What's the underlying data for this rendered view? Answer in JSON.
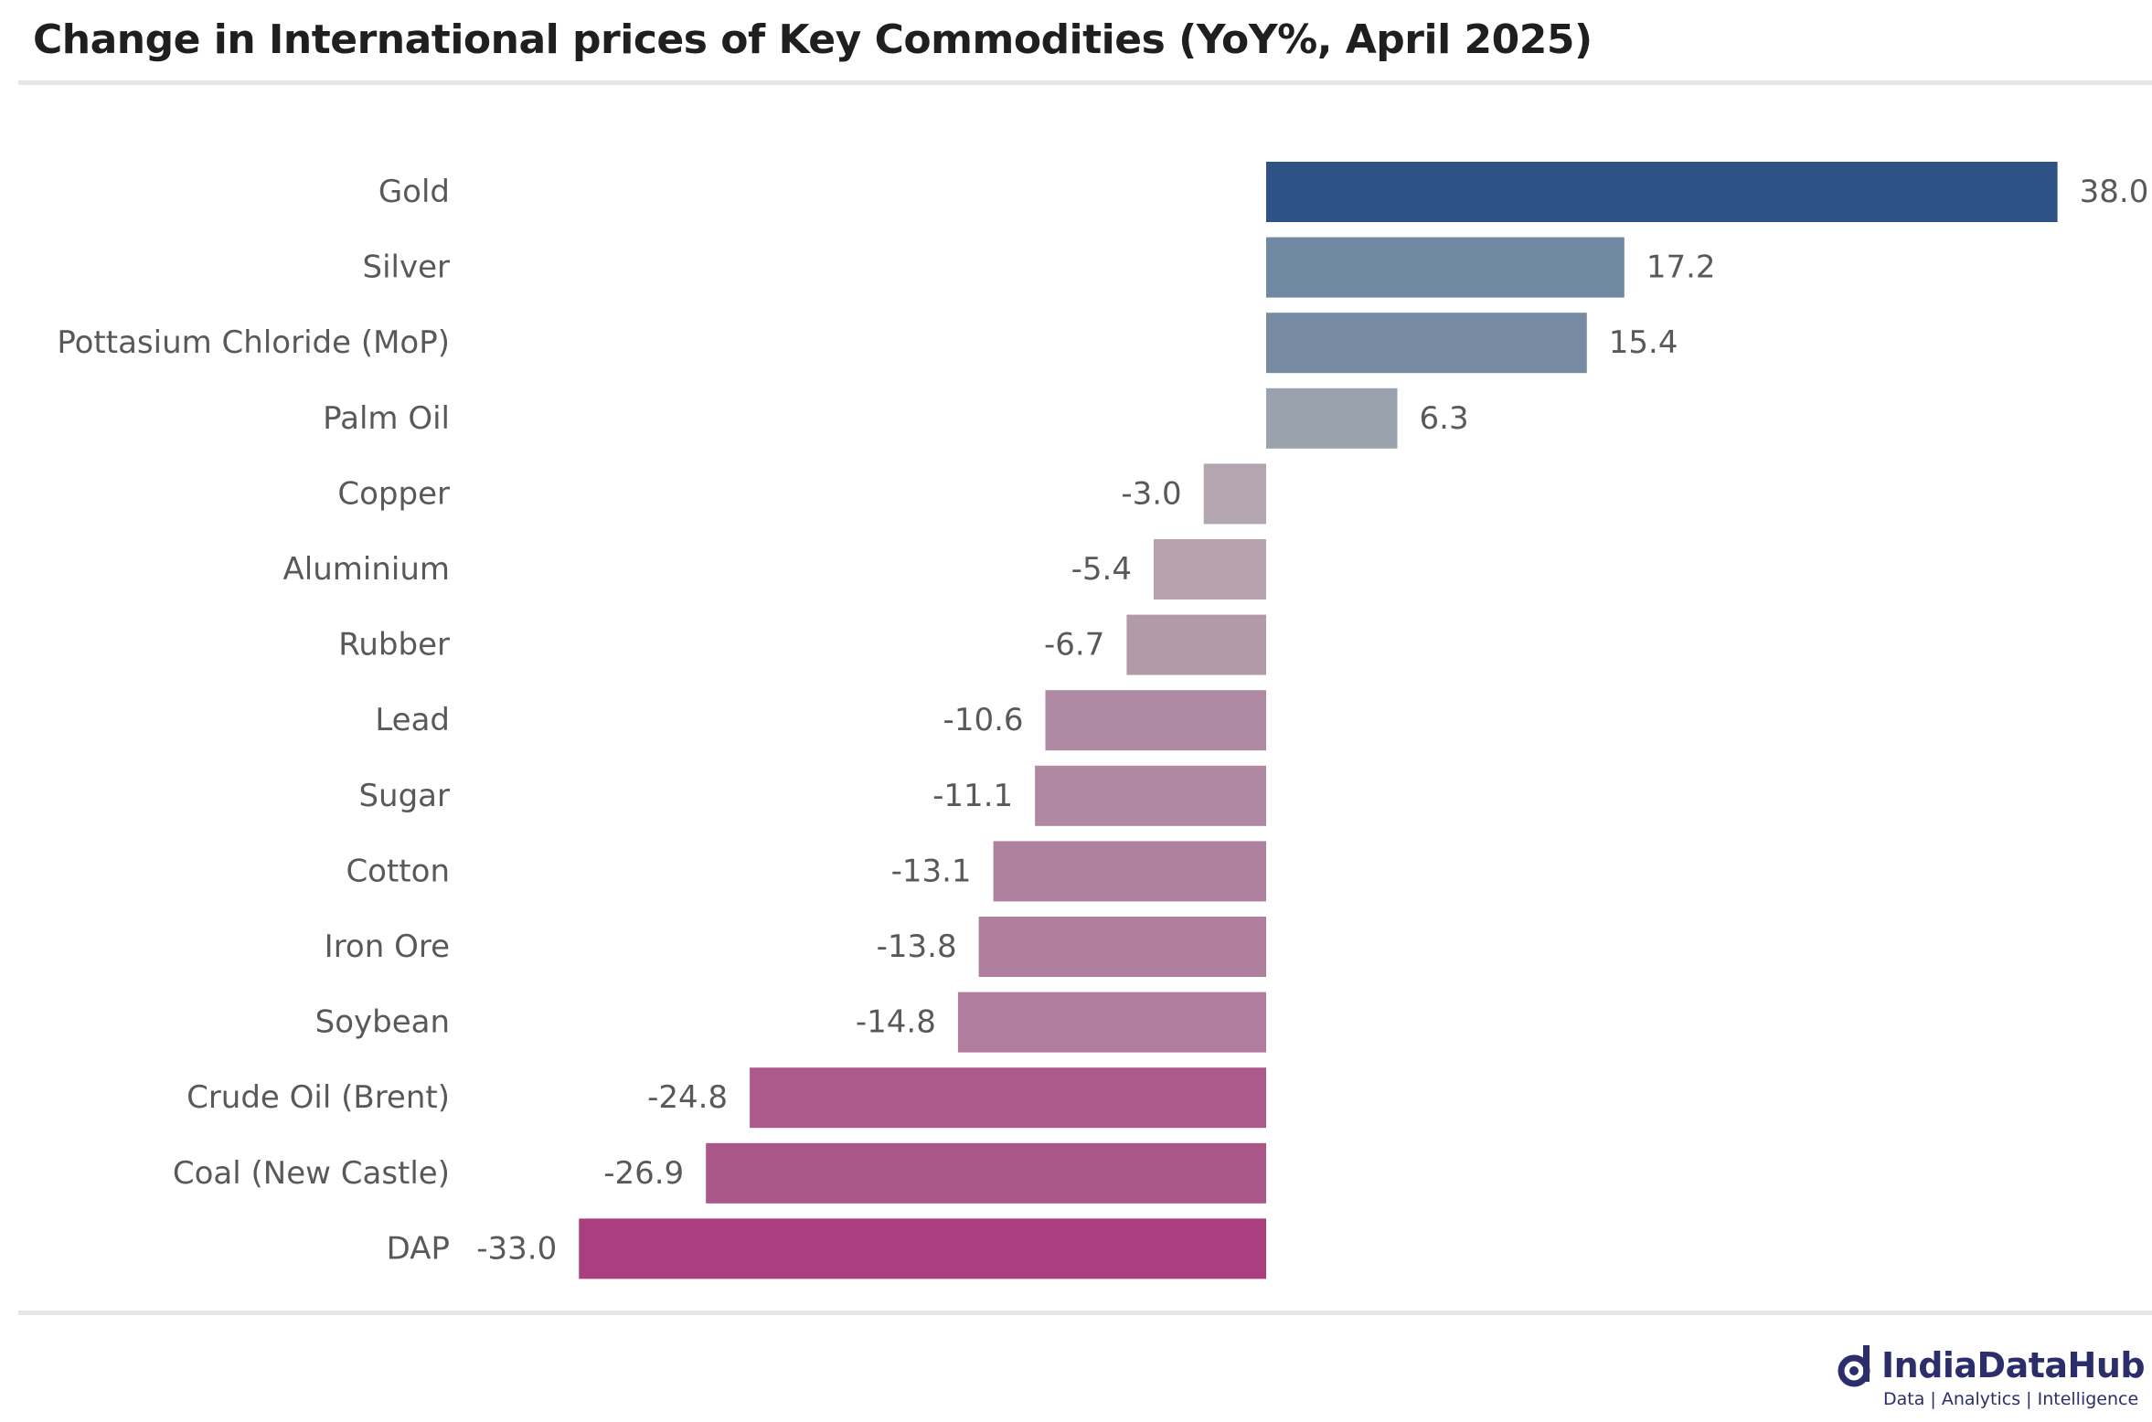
{
  "chart_data": {
    "type": "bar",
    "orientation": "horizontal",
    "title": "Change in International prices of Key Commodities (YoY%, April 2025)",
    "categories": [
      "Gold",
      "Silver",
      "Pottasium Chloride (MoP)",
      "Palm Oil",
      "Copper",
      "Aluminium",
      "Rubber",
      "Lead",
      "Sugar",
      "Cotton",
      "Iron Ore",
      "Soybean",
      "Crude Oil (Brent)",
      "Coal (New Castle)",
      "DAP"
    ],
    "values": [
      38.0,
      17.2,
      15.4,
      6.3,
      -3.0,
      -5.4,
      -6.7,
      -10.6,
      -11.1,
      -13.1,
      -13.8,
      -14.8,
      -24.8,
      -26.9,
      -33.0
    ],
    "value_labels": [
      "38.0",
      "17.2",
      "15.4",
      "6.3",
      "-3.0",
      "-5.4",
      "-6.7",
      "-10.6",
      "-11.1",
      "-13.1",
      "-13.8",
      "-14.8",
      "-24.8",
      "-26.9",
      "-33.0"
    ],
    "colors": [
      "#2e5286",
      "#6f89a3",
      "#778ca3",
      "#9aa3ab",
      "#b4a6b0",
      "#b8a2ae",
      "#b39aab",
      "#b08aa2",
      "#b188a2",
      "#b0819e",
      "#af7f9d",
      "#b17d9e",
      "#ab5a8b",
      "#ab5789",
      "#aa3f7f"
    ],
    "xlim": [
      -33.0,
      38.0
    ],
    "grid": false,
    "legend": "none"
  },
  "brand": {
    "name": "IndiaDataHub",
    "tagline": "Data | Analytics | Intelligence",
    "color": "#2b2e6b"
  }
}
